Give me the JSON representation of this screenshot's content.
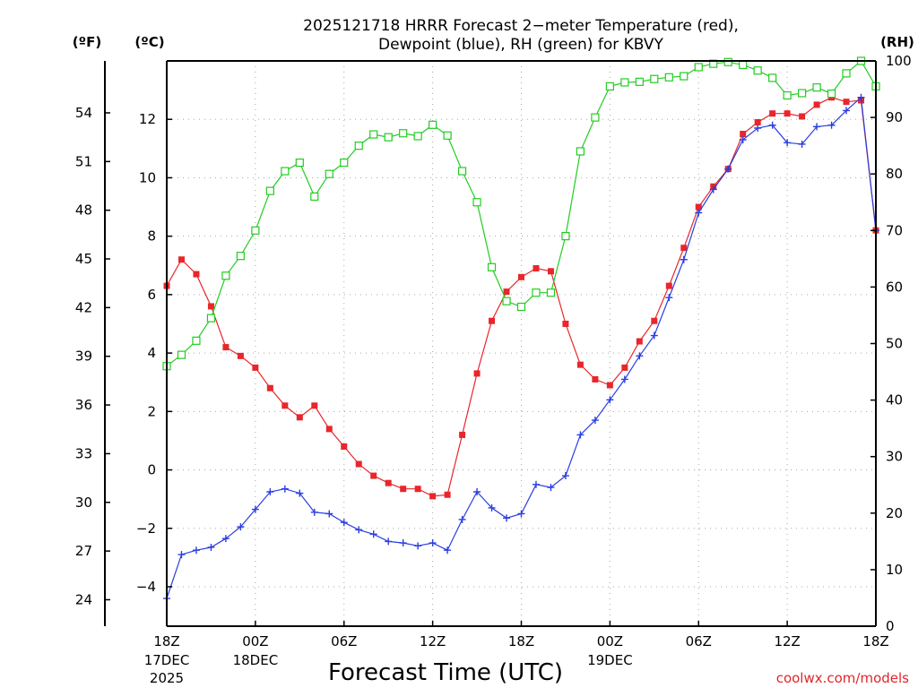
{
  "chart_data": {
    "type": "line",
    "title_line1": "2025121718 HRRR Forecast 2−meter Temperature (red),",
    "title_line2": "Dewpoint (blue), RH (green) for KBVY",
    "xlabel": "Forecast Time (UTC)",
    "credit": "coolwx.com/models",
    "units": {
      "left_f": "(ºF)",
      "left_c": "(ºC)",
      "right": "(RH)"
    },
    "x_range_hours": [
      0,
      48
    ],
    "y_celsius_range": [
      -5.35,
      14
    ],
    "y_rh_range": [
      0,
      100
    ],
    "grid": true,
    "x_ticks": [
      {
        "hour": 0,
        "label": "18Z",
        "sub1": "17DEC",
        "sub2": "2025"
      },
      {
        "hour": 6,
        "label": "00Z",
        "sub1": "18DEC",
        "sub2": ""
      },
      {
        "hour": 12,
        "label": "06Z",
        "sub1": "",
        "sub2": ""
      },
      {
        "hour": 18,
        "label": "12Z",
        "sub1": "",
        "sub2": ""
      },
      {
        "hour": 24,
        "label": "18Z",
        "sub1": "",
        "sub2": ""
      },
      {
        "hour": 30,
        "label": "00Z",
        "sub1": "19DEC",
        "sub2": ""
      },
      {
        "hour": 36,
        "label": "06Z",
        "sub1": "",
        "sub2": ""
      },
      {
        "hour": 42,
        "label": "12Z",
        "sub1": "",
        "sub2": ""
      },
      {
        "hour": 48,
        "label": "18Z",
        "sub1": "",
        "sub2": ""
      }
    ],
    "c_ticks": [
      12,
      10,
      8,
      6,
      4,
      2,
      0,
      -2,
      -4
    ],
    "c_tick_labels": [
      "12",
      "10",
      "8",
      "6",
      "4",
      "2",
      "0",
      "−2",
      "−4"
    ],
    "f_ticks": [
      54,
      51,
      48,
      45,
      42,
      39,
      36,
      33,
      30,
      27,
      24
    ],
    "f_tick_labels": [
      "54",
      "51",
      "48",
      "45",
      "42",
      "39",
      "36",
      "33",
      "30",
      "27",
      "24"
    ],
    "rh_ticks": [
      0,
      10,
      20,
      30,
      40,
      50,
      60,
      70,
      80,
      90,
      100
    ],
    "rh_tick_labels": [
      "0",
      "10",
      "20",
      "30",
      "40",
      "50",
      "60",
      "70",
      "80",
      "90",
      "100"
    ],
    "hours": [
      0,
      1,
      2,
      3,
      4,
      5,
      6,
      7,
      8,
      9,
      10,
      11,
      12,
      13,
      14,
      15,
      16,
      17,
      18,
      19,
      20,
      21,
      22,
      23,
      24,
      25,
      26,
      27,
      28,
      29,
      30,
      31,
      32,
      33,
      34,
      35,
      36,
      37,
      38,
      39,
      40,
      41,
      42,
      43,
      44,
      45,
      46,
      47,
      48
    ],
    "series": [
      {
        "name": "Temperature",
        "unit": "°C",
        "color": "#e8262b",
        "marker": "filled-square",
        "values": [
          6.3,
          7.2,
          6.7,
          5.6,
          4.2,
          3.9,
          3.5,
          2.8,
          2.2,
          1.8,
          2.2,
          1.4,
          0.8,
          0.2,
          -0.2,
          -0.45,
          -0.65,
          -0.65,
          -0.9,
          -0.85,
          1.2,
          3.3,
          5.1,
          6.1,
          6.6,
          6.9,
          6.8,
          5.0,
          3.6,
          3.1,
          2.9,
          3.5,
          4.4,
          5.1,
          6.3,
          7.6,
          9.0,
          9.7,
          10.3,
          11.5,
          11.9,
          12.2,
          12.2,
          12.1,
          12.5,
          12.75,
          12.6,
          12.65,
          8.2
        ]
      },
      {
        "name": "Dewpoint",
        "unit": "°C",
        "color": "#2a3de0",
        "marker": "plus",
        "values": [
          -4.4,
          -2.9,
          -2.75,
          -2.65,
          -2.35,
          -1.95,
          -1.35,
          -0.75,
          -0.65,
          -0.8,
          -1.45,
          -1.5,
          -1.8,
          -2.05,
          -2.2,
          -2.45,
          -2.5,
          -2.6,
          -2.5,
          -2.75,
          -1.7,
          -0.75,
          -1.3,
          -1.65,
          -1.5,
          -0.5,
          -0.6,
          -0.2,
          1.2,
          1.7,
          2.4,
          3.1,
          3.9,
          4.6,
          5.9,
          7.2,
          8.8,
          9.6,
          10.3,
          11.3,
          11.7,
          11.8,
          11.2,
          11.15,
          11.75,
          11.8,
          12.3,
          12.75,
          8.2
        ]
      },
      {
        "name": "RH",
        "unit": "%",
        "color": "#22cc22",
        "marker": "open-square",
        "values": [
          46,
          48,
          50.5,
          54.5,
          62,
          65.5,
          70,
          77,
          80.5,
          82,
          76,
          80,
          82,
          85,
          87,
          86.5,
          87.2,
          86.7,
          88.7,
          86.8,
          80.5,
          75,
          63.5,
          57.5,
          56.5,
          59,
          59,
          69,
          84,
          90,
          95.5,
          96.2,
          96.3,
          96.8,
          97.1,
          97.3,
          98.9,
          99.5,
          99.8,
          99.3,
          98.3,
          97,
          93.9,
          94.3,
          95.3,
          94.2,
          97.8,
          100,
          95.5
        ]
      }
    ]
  }
}
